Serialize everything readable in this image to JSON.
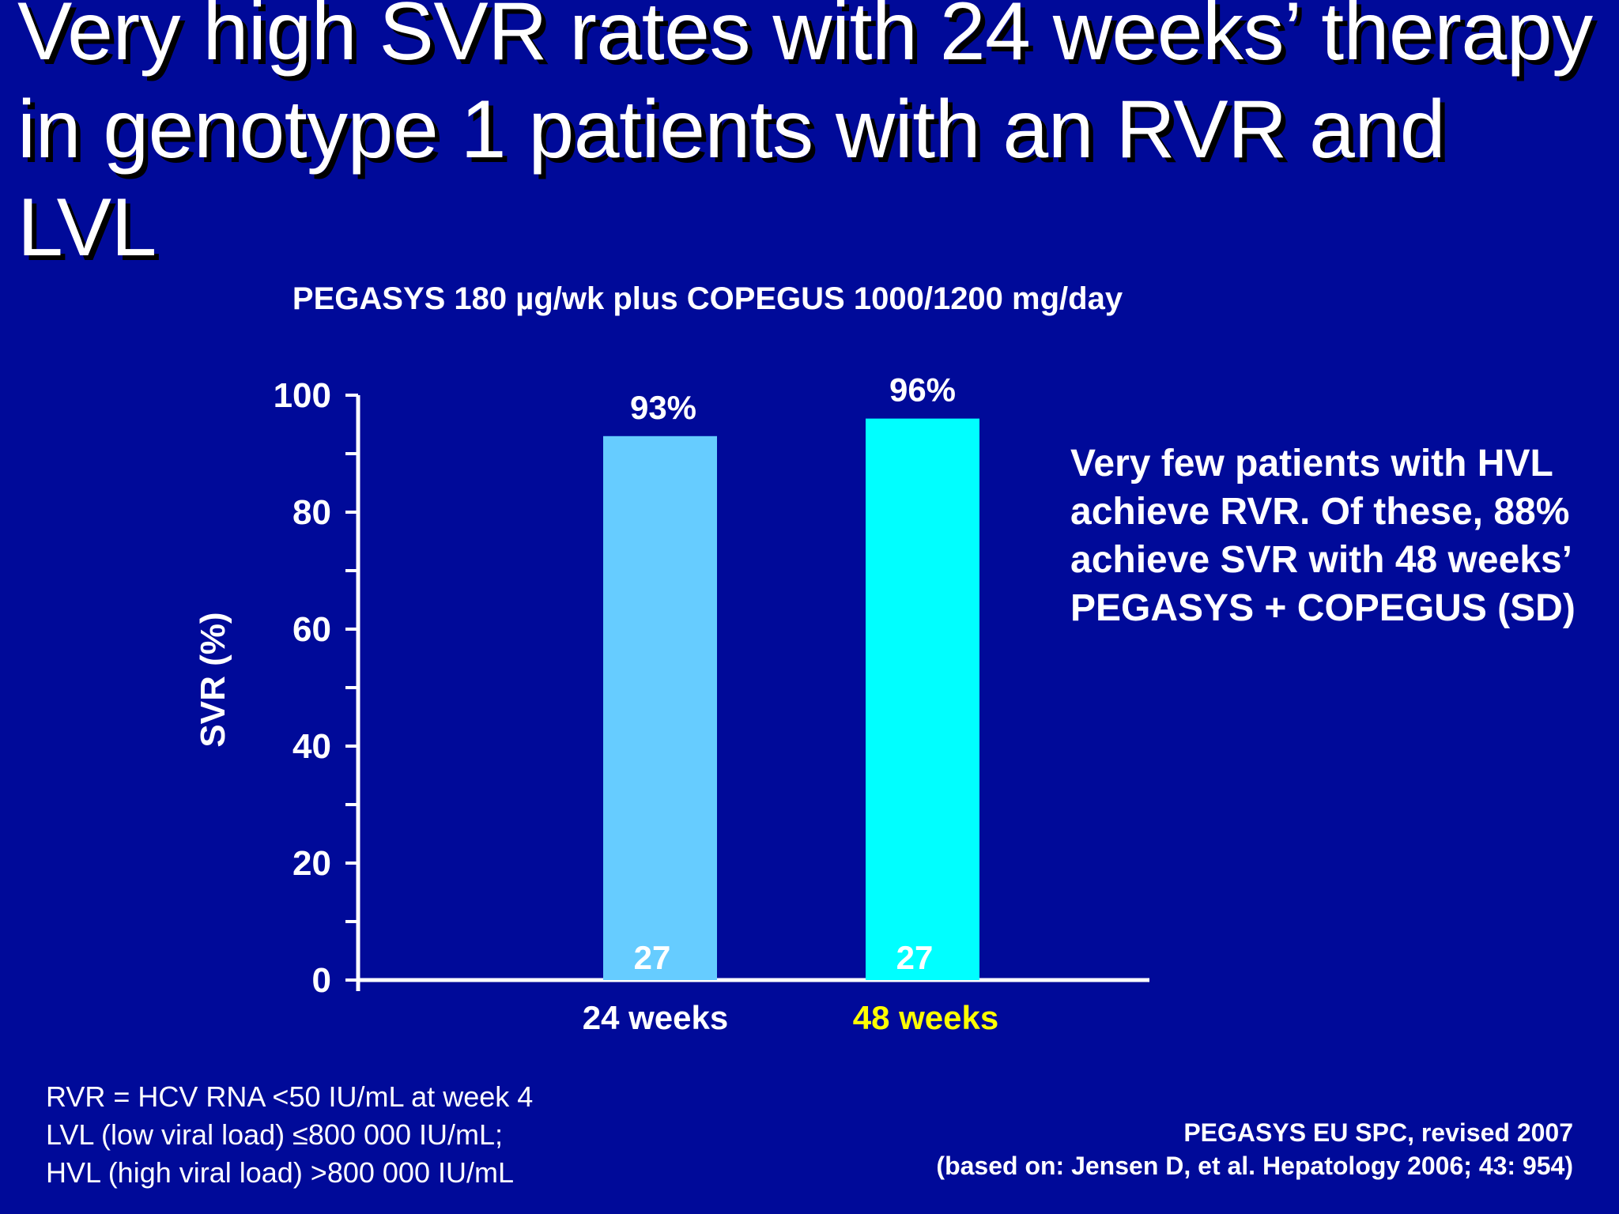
{
  "slide": {
    "title": "Very high SVR rates with 24 weeks’ therapy in genotype 1 patients with an RVR and LVL",
    "subtitle": "PEGASYS 180 µg/wk plus COPEGUS 1000/1200 mg/day",
    "side_note": "Very few patients with HVL achieve RVR. Of these, 88% achieve SVR with 48 weeks’ PEGASYS + COPEGUS (SD)",
    "footnotes": [
      "RVR = HCV RNA <50 IU/mL at week 4",
      "LVL (low viral load) ≤800 000 IU/mL;",
      "HVL (high viral load) >800 000 IU/mL"
    ],
    "source": [
      "PEGASYS EU SPC, revised 2007",
      "(based on: Jensen D, et al. Hepatology 2006; 43: 954)"
    ]
  },
  "chart_data": {
    "type": "bar",
    "categories": [
      "24 weeks",
      "48 weeks"
    ],
    "values": [
      93,
      96
    ],
    "value_labels": [
      "93%",
      "96%"
    ],
    "n_labels": [
      "27",
      "27"
    ],
    "ylabel": "SVR (%)",
    "ylim": [
      0,
      100
    ],
    "yticks": [
      0,
      20,
      40,
      60,
      80,
      100
    ],
    "grid": false,
    "legend": "none",
    "colors": {
      "bars": [
        "#66ccff",
        "#00ffff"
      ],
      "category_labels": [
        "#ffffff",
        "#ffff00"
      ],
      "axis": "#ffffff",
      "background": "#000a99"
    }
  }
}
